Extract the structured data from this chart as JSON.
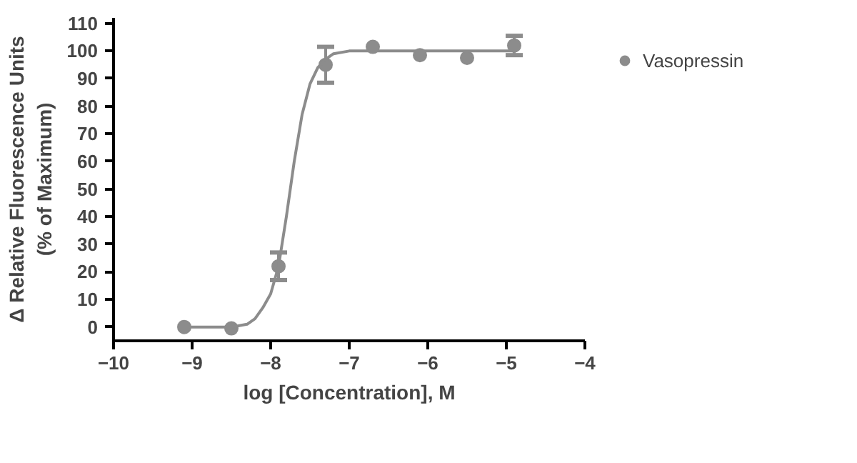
{
  "chart_data": {
    "type": "scatter",
    "xlabel": "log [Concentration], M",
    "ylabel": "Δ Relative Fluorescence Units\n(% of Maximum)",
    "xlim": [
      -10,
      -4
    ],
    "xticks": [
      -10,
      -9,
      -8,
      -7,
      -6,
      -5,
      -4
    ],
    "ylim": [
      -5,
      112
    ],
    "yticks": [
      0,
      10,
      20,
      30,
      40,
      50,
      60,
      70,
      80,
      90,
      100,
      110
    ],
    "grid": false,
    "legend": "top right",
    "series": [
      {
        "name": "Vasopressin",
        "marker": "circle",
        "color": "#8c8c8c",
        "x": [
          -9.1,
          -8.5,
          -7.9,
          -7.3,
          -6.7,
          -6.1,
          -5.5,
          -4.9
        ],
        "values": [
          0,
          -0.5,
          22,
          95,
          101.5,
          98.5,
          97.5,
          102
        ],
        "errors": [
          null,
          null,
          5,
          6.5,
          null,
          null,
          null,
          3.5
        ]
      },
      {
        "type": "line",
        "color": "#8c8c8c",
        "line_style": "solid",
        "x": [
          -9.1,
          -8.5,
          -8.3,
          -8.2,
          -8.1,
          -8.0,
          -7.9,
          -7.8,
          -7.7,
          -7.6,
          -7.5,
          -7.4,
          -7.3,
          -7.2,
          -7.0,
          -6.5,
          -4.9
        ],
        "values": [
          0,
          0,
          1,
          3,
          7,
          12,
          22,
          40,
          60,
          77,
          88,
          94,
          97,
          99,
          100,
          100,
          100
        ]
      }
    ]
  }
}
